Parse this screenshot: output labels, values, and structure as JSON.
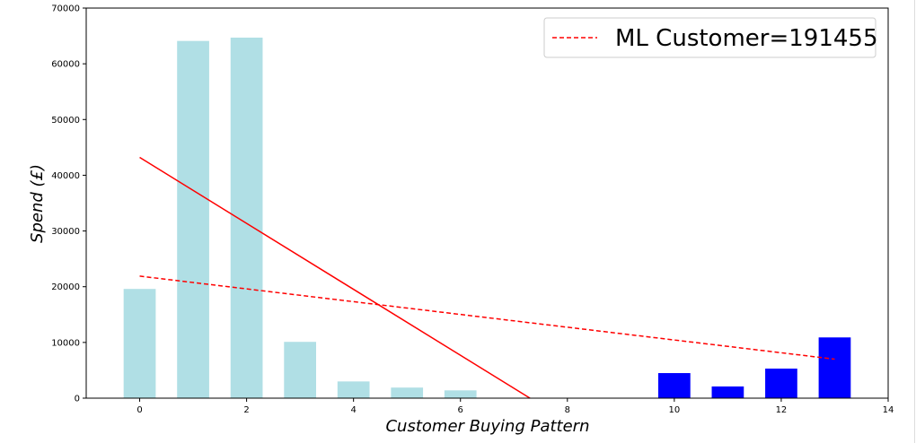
{
  "chart_data": {
    "type": "bar",
    "title": "",
    "xlabel": "Customer Buying Pattern",
    "ylabel": "Spend (£)",
    "xlim": [
      -1,
      14
    ],
    "ylim": [
      0,
      70000
    ],
    "xticks": [
      0,
      2,
      4,
      6,
      8,
      10,
      12,
      14
    ],
    "yticks": [
      0,
      10000,
      20000,
      30000,
      40000,
      50000,
      60000,
      70000
    ],
    "grid": false,
    "legend_position": "top-right",
    "series": [
      {
        "kind": "bar",
        "color": "#b0dfe5",
        "x": [
          0,
          1,
          2,
          3,
          4,
          5,
          6
        ],
        "values": [
          19600,
          64100,
          64700,
          10100,
          3000,
          1900,
          1400
        ]
      },
      {
        "kind": "bar",
        "color": "#0000ff",
        "x": [
          10,
          11,
          12,
          13
        ],
        "values": [
          4500,
          2100,
          5300,
          10900
        ]
      },
      {
        "kind": "line",
        "style": "solid",
        "color": "#ff0000",
        "x": [
          0,
          7.3
        ],
        "values": [
          43200,
          0
        ]
      },
      {
        "kind": "line",
        "style": "dashed",
        "color": "#ff0000",
        "name": "ML Customer=191455",
        "x": [
          0,
          13
        ],
        "values": [
          21900,
          7000
        ]
      }
    ]
  }
}
